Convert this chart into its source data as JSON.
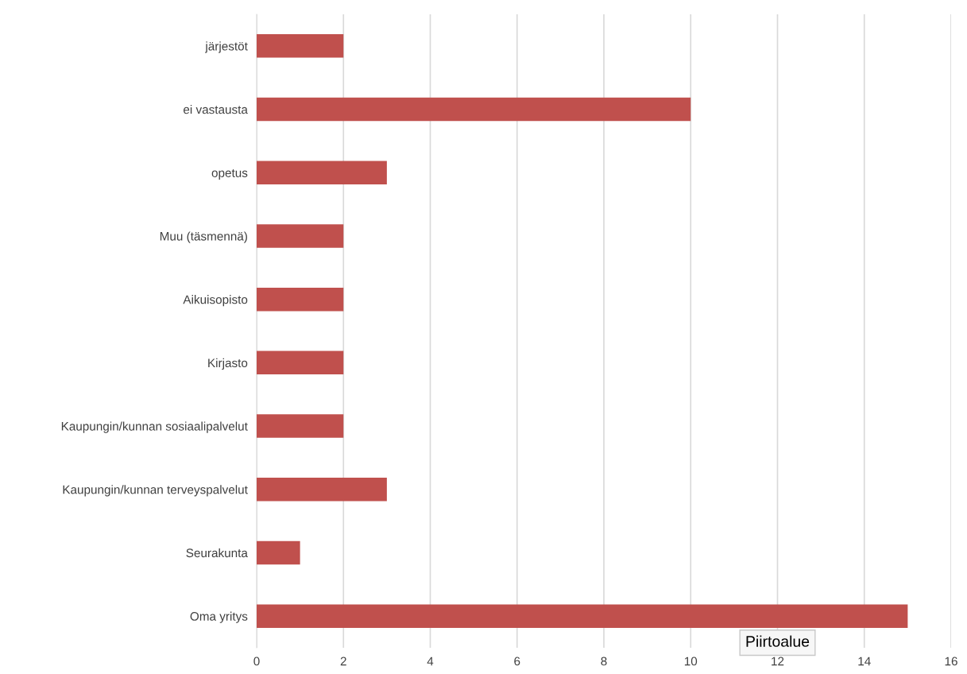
{
  "chart_data": {
    "type": "bar",
    "orientation": "horizontal",
    "categories": [
      "järjestöt",
      "ei vastausta",
      "opetus",
      "Muu (täsmennä)",
      "Aikuisopisto",
      "Kirjasto",
      "Kaupungin/kunnan sosiaalipalvelut",
      "Kaupungin/kunnan terveyspalvelut",
      "Seurakunta",
      "Oma yritys"
    ],
    "values": [
      2,
      10,
      3,
      2,
      2,
      2,
      2,
      3,
      1,
      15
    ],
    "color": "#c0504d",
    "xlim": [
      0,
      16
    ],
    "xticks": [
      0,
      2,
      4,
      6,
      8,
      10,
      12,
      14,
      16
    ],
    "grid": "x",
    "legend": false,
    "annotations": [
      "Piirtoalue"
    ]
  }
}
